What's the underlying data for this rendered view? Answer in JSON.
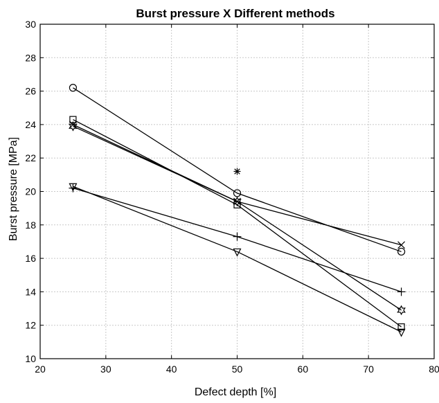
{
  "chart_data": {
    "type": "line",
    "title": "Burst pressure X Different methods",
    "xlabel": "Defect depth [%]",
    "ylabel": "Burst pressure [MPa]",
    "xlim": [
      20,
      80
    ],
    "ylim": [
      10,
      30
    ],
    "xticks": [
      20,
      30,
      40,
      50,
      60,
      70,
      80
    ],
    "yticks": [
      10,
      12,
      14,
      16,
      18,
      20,
      22,
      24,
      26,
      28,
      30
    ],
    "grid": true,
    "legend": "none",
    "x": [
      25,
      50,
      75
    ],
    "series": [
      {
        "marker": "circle",
        "values": [
          26.2,
          19.9,
          16.4
        ]
      },
      {
        "marker": "square",
        "values": [
          24.3,
          19.2,
          11.9
        ]
      },
      {
        "marker": "hexagram",
        "values": [
          23.9,
          19.4,
          12.9
        ]
      },
      {
        "marker": "x-mark",
        "values": [
          24.0,
          19.4,
          16.8
        ]
      },
      {
        "marker": "plus",
        "values": [
          20.2,
          17.3,
          14.0
        ]
      },
      {
        "marker": "triangle-down",
        "values": [
          20.3,
          16.4,
          11.6
        ]
      }
    ],
    "extra_points": [
      {
        "marker": "asterisk",
        "x": 50,
        "y": 21.2
      }
    ]
  }
}
